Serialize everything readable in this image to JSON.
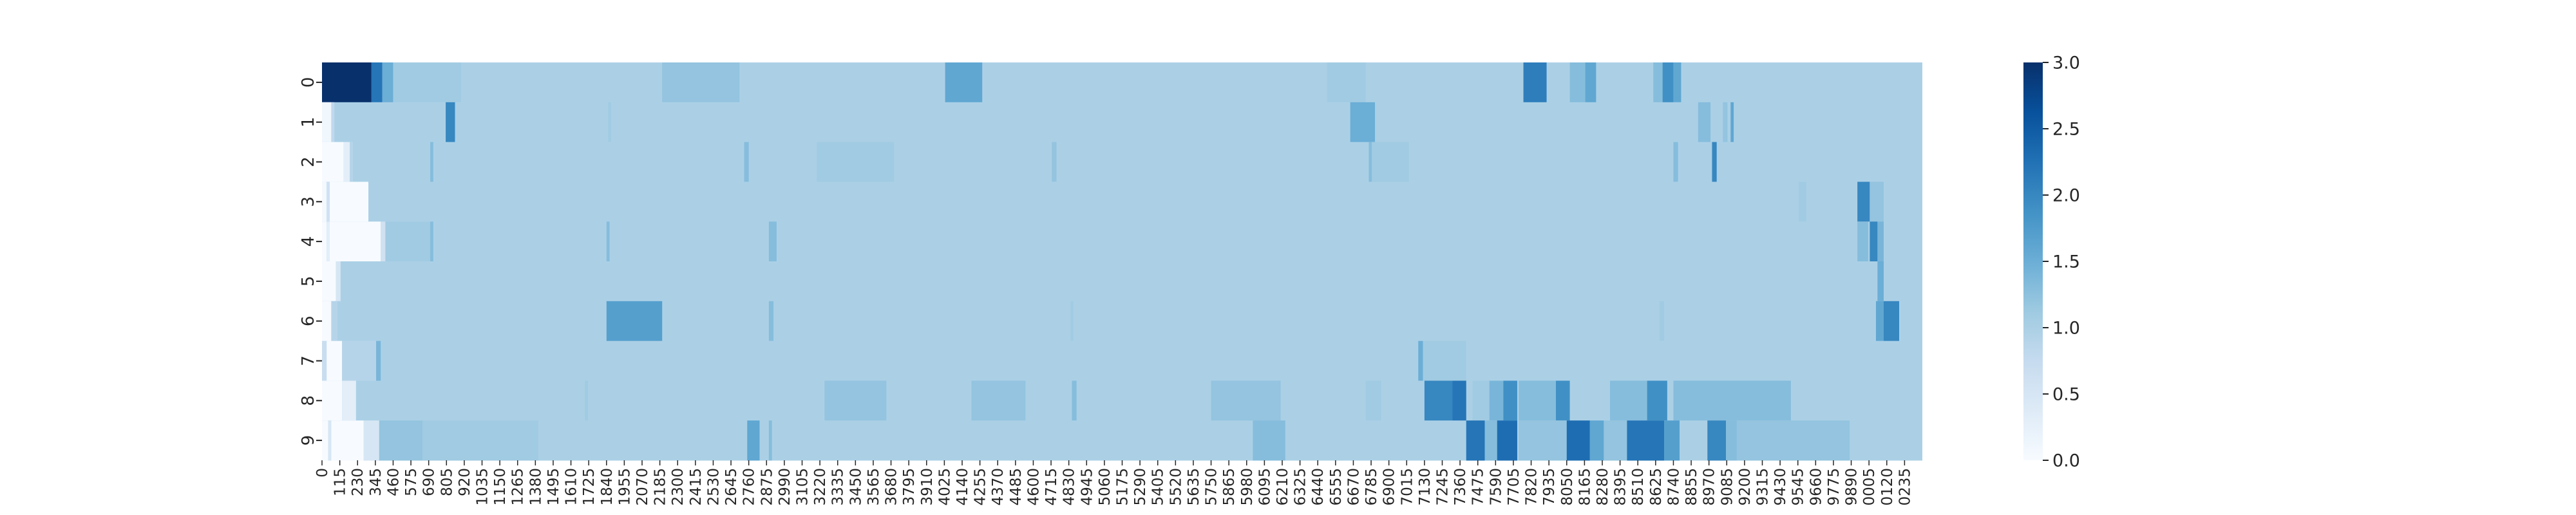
{
  "chart_data": {
    "type": "heatmap",
    "title": "",
    "xlabel": "",
    "ylabel": "",
    "colormap": "Blues",
    "color_range": [
      0.0,
      3.0
    ],
    "colors": {
      "low": "#f7fbff",
      "base": "#abd0e6",
      "mid": "#6aaed6",
      "high": "#2171b5",
      "max": "#08306b"
    },
    "rows": [
      "0",
      "1",
      "2",
      "3",
      "4",
      "5",
      "6",
      "7",
      "8",
      "9"
    ],
    "x_min": 0,
    "x_max": 10350,
    "x_tick_step": 115,
    "x_tick_labels": [
      "0",
      "115",
      "230",
      "345",
      "460",
      "575",
      "690",
      "805",
      "920",
      "1035",
      "1150",
      "1265",
      "1380",
      "1495",
      "1610",
      "1725",
      "1840",
      "1955",
      "2070",
      "2185",
      "2300",
      "2415",
      "2530",
      "2645",
      "2760",
      "2875",
      "2990",
      "3105",
      "3220",
      "3335",
      "3450",
      "3565",
      "3680",
      "3795",
      "3910",
      "4025",
      "4140",
      "4255",
      "4370",
      "4485",
      "4600",
      "4715",
      "4830",
      "4945",
      "5060",
      "5175",
      "5290",
      "5405",
      "5520",
      "5635",
      "5750",
      "5865",
      "5980",
      "6095",
      "6210",
      "6325",
      "6440",
      "6555",
      "6670",
      "6785",
      "6900",
      "7015",
      "7130",
      "7245",
      "7360",
      "7475",
      "7590",
      "7705",
      "7820",
      "7935",
      "8050",
      "8165",
      "8280",
      "8395",
      "8510",
      "8625",
      "8740",
      "8855",
      "8970",
      "9085",
      "9200",
      "9315",
      "9430",
      "9545",
      "9660",
      "9775",
      "9890",
      "0005",
      "0120",
      "0235"
    ],
    "colorbar_ticks": [
      "0.0",
      "0.5",
      "1.0",
      "1.5",
      "2.0",
      "2.5",
      "3.0"
    ],
    "colorbar_tick_values": [
      0.0,
      0.5,
      1.0,
      1.5,
      2.0,
      2.5,
      3.0
    ],
    "legend_position": "right",
    "base_value": 1.0,
    "segments": [
      [
        [
          0,
          3.0,
          320
        ],
        [
          320,
          2.2,
          390
        ],
        [
          390,
          1.5,
          460
        ],
        [
          460,
          1.1,
          900
        ],
        [
          2200,
          1.2,
          2700
        ],
        [
          4030,
          1.6,
          4270
        ],
        [
          6500,
          1.1,
          6750
        ],
        [
          7770,
          2.1,
          7920
        ],
        [
          8070,
          1.3,
          8170
        ],
        [
          8170,
          1.6,
          8240
        ],
        [
          8610,
          1.3,
          8670
        ],
        [
          8670,
          1.9,
          8740
        ],
        [
          8740,
          1.6,
          8790
        ]
      ],
      [
        [
          0,
          0.1,
          60
        ],
        [
          60,
          0.8,
          80
        ],
        [
          800,
          2.0,
          860
        ],
        [
          1850,
          1.1,
          1870
        ],
        [
          6650,
          1.5,
          6810
        ],
        [
          8900,
          1.3,
          8980
        ],
        [
          9060,
          1.2,
          9090
        ],
        [
          9110,
          1.6,
          9130
        ]
      ],
      [
        [
          0,
          0.0,
          140
        ],
        [
          140,
          0.3,
          180
        ],
        [
          180,
          0.9,
          200
        ],
        [
          700,
          1.3,
          720
        ],
        [
          2730,
          1.3,
          2760
        ],
        [
          3200,
          1.1,
          3700
        ],
        [
          4720,
          1.2,
          4750
        ],
        [
          6770,
          1.3,
          6790
        ],
        [
          6790,
          1.1,
          7030
        ],
        [
          8740,
          1.3,
          8770
        ],
        [
          8990,
          2.0,
          9020
        ]
      ],
      [
        [
          0,
          0.05,
          30
        ],
        [
          30,
          0.6,
          50
        ],
        [
          50,
          0.0,
          300
        ],
        [
          9550,
          1.1,
          9600
        ],
        [
          9930,
          2.0,
          10010
        ],
        [
          10010,
          1.2,
          10100
        ]
      ],
      [
        [
          0,
          0.0,
          30
        ],
        [
          30,
          0.3,
          50
        ],
        [
          50,
          0.0,
          380
        ],
        [
          380,
          0.6,
          410
        ],
        [
          410,
          1.1,
          700
        ],
        [
          700,
          1.3,
          720
        ],
        [
          1840,
          1.3,
          1860
        ],
        [
          2890,
          1.3,
          2940
        ],
        [
          9930,
          1.3,
          10000
        ],
        [
          10010,
          2.0,
          10060
        ],
        [
          10060,
          1.4,
          10100
        ]
      ],
      [
        [
          0,
          0.0,
          90
        ],
        [
          90,
          0.5,
          120
        ],
        [
          10060,
          1.5,
          10100
        ]
      ],
      [
        [
          0,
          0.0,
          60
        ],
        [
          60,
          0.9,
          100
        ],
        [
          1840,
          1.7,
          2200
        ],
        [
          2890,
          1.3,
          2920
        ],
        [
          4840,
          1.1,
          4860
        ],
        [
          8650,
          1.1,
          8680
        ],
        [
          10050,
          1.6,
          10100
        ],
        [
          10100,
          2.0,
          10200
        ]
      ],
      [
        [
          0,
          0.7,
          30
        ],
        [
          30,
          0.0,
          130
        ],
        [
          130,
          0.9,
          350
        ],
        [
          350,
          1.4,
          380
        ],
        [
          7090,
          1.5,
          7120
        ],
        [
          7120,
          1.1,
          7400
        ]
      ],
      [
        [
          0,
          0.0,
          130
        ],
        [
          130,
          0.3,
          220
        ],
        [
          1700,
          1.1,
          1720
        ],
        [
          3250,
          1.2,
          3650
        ],
        [
          4200,
          1.2,
          4550
        ],
        [
          4850,
          1.3,
          4880
        ],
        [
          5750,
          1.2,
          6200
        ],
        [
          6750,
          1.1,
          6850
        ],
        [
          7130,
          2.0,
          7310
        ],
        [
          7310,
          2.2,
          7400
        ],
        [
          7440,
          1.1,
          7550
        ],
        [
          7550,
          1.4,
          7640
        ],
        [
          7640,
          1.9,
          7730
        ],
        [
          7740,
          1.3,
          7980
        ],
        [
          7980,
          1.9,
          8070
        ],
        [
          8330,
          1.3,
          8570
        ],
        [
          8570,
          1.9,
          8700
        ],
        [
          8740,
          1.3,
          9500
        ]
      ],
      [
        [
          0,
          0.0,
          40
        ],
        [
          40,
          0.5,
          60
        ],
        [
          60,
          0.0,
          270
        ],
        [
          270,
          0.5,
          370
        ],
        [
          370,
          1.2,
          650
        ],
        [
          650,
          1.1,
          1400
        ],
        [
          2750,
          1.6,
          2830
        ],
        [
          2890,
          1.3,
          2910
        ],
        [
          6020,
          1.3,
          6230
        ],
        [
          7400,
          2.2,
          7520
        ],
        [
          7520,
          1.3,
          7600
        ],
        [
          7600,
          2.3,
          7730
        ],
        [
          7740,
          1.2,
          8050
        ],
        [
          8050,
          2.3,
          8200
        ],
        [
          8200,
          1.6,
          8290
        ],
        [
          8290,
          1.2,
          8440
        ],
        [
          8440,
          2.2,
          8680
        ],
        [
          8680,
          1.7,
          8780
        ],
        [
          8960,
          2.0,
          9080
        ],
        [
          9080,
          1.3,
          9150
        ],
        [
          9150,
          1.2,
          9600
        ],
        [
          9600,
          1.2,
          9880
        ]
      ]
    ]
  }
}
